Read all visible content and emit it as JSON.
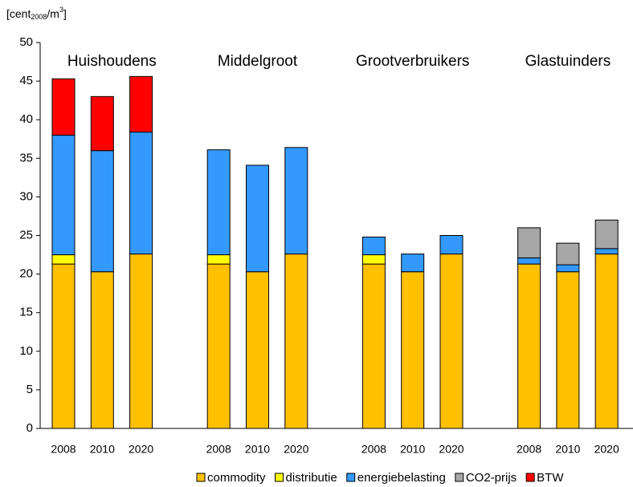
{
  "chart_data": {
    "type": "stacked_bar",
    "y_label_parts": [
      "[cent",
      "2008",
      "/m",
      "3",
      "]"
    ],
    "groups": [
      {
        "name": "Huishoudens",
        "categories": [
          "2008",
          "2010",
          "2020"
        ]
      },
      {
        "name": "Middelgroot",
        "categories": [
          "2008",
          "2010",
          "2020"
        ]
      },
      {
        "name": "Grootverbruikers",
        "categories": [
          "2008",
          "2010",
          "2020"
        ]
      },
      {
        "name": "Glastuinders",
        "categories": [
          "2008",
          "2010",
          "2020"
        ]
      }
    ],
    "series": [
      {
        "name": "commodity",
        "color": "#FFC000",
        "values": [
          21.3,
          20.3,
          22.6,
          21.3,
          20.3,
          22.6,
          21.3,
          20.3,
          22.6,
          21.3,
          20.3,
          22.6
        ]
      },
      {
        "name": "distributie",
        "color": "#FFFF00",
        "values": [
          1.2,
          0,
          0,
          1.2,
          0,
          0,
          1.2,
          0,
          0,
          0,
          0,
          0
        ]
      },
      {
        "name": "energiebelasting",
        "color": "#3399FF",
        "values": [
          15.5,
          15.7,
          15.8,
          13.6,
          13.8,
          13.8,
          2.3,
          2.3,
          2.4,
          0.8,
          0.9,
          0.7
        ]
      },
      {
        "name": "CO2-prijs",
        "color": "#A6A6A6",
        "values": [
          0,
          0,
          0,
          0,
          0,
          0,
          0,
          0,
          0,
          3.9,
          2.8,
          3.7
        ]
      },
      {
        "name": "BTW",
        "color": "#FF0000",
        "values": [
          7.3,
          7.0,
          7.2,
          0,
          0,
          0,
          0,
          0,
          0,
          0,
          0,
          0
        ]
      }
    ],
    "ylim": [
      0,
      50
    ],
    "yticks": [
      0,
      5,
      10,
      15,
      20,
      25,
      30,
      35,
      40,
      45,
      50
    ],
    "legend": "bottom"
  }
}
